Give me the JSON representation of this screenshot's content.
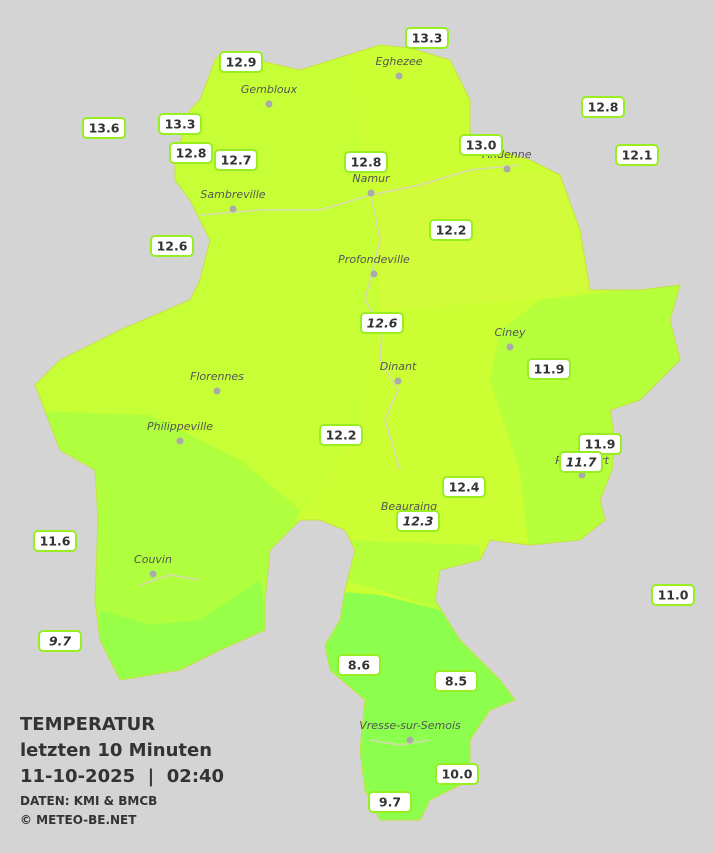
{
  "title": {
    "lines": [
      "TEMPERATUR",
      "letzten 10 Minuten",
      "11-10-2025  |  02:40"
    ],
    "source": "DATEN: KMI & BMCB",
    "copyright": "© METEO-BE.NET"
  },
  "cities": [
    {
      "name": "Eghezee"
    },
    {
      "name": "Gembloux"
    },
    {
      "name": "Andenne"
    },
    {
      "name": "Namur"
    },
    {
      "name": "Sambreville"
    },
    {
      "name": "Profondeville"
    },
    {
      "name": "Ciney"
    },
    {
      "name": "Dinant"
    },
    {
      "name": "Florennes"
    },
    {
      "name": "Philippeville"
    },
    {
      "name": "Rochefort"
    },
    {
      "name": "Beauraing"
    },
    {
      "name": "Couvin"
    },
    {
      "name": "Vresse-sur-Semois"
    }
  ],
  "stations": [
    {
      "value": "13.3"
    },
    {
      "value": "12.9"
    },
    {
      "value": "12.8"
    },
    {
      "value": "13.6"
    },
    {
      "value": "13.3"
    },
    {
      "value": "13.0"
    },
    {
      "value": "12.8"
    },
    {
      "value": "12.7"
    },
    {
      "value": "12.8"
    },
    {
      "value": "12.1"
    },
    {
      "value": "12.2"
    },
    {
      "value": "12.6"
    },
    {
      "value": "12.6",
      "italic": true
    },
    {
      "value": "11.9"
    },
    {
      "value": "12.2"
    },
    {
      "value": "11.9"
    },
    {
      "value": "11.7",
      "italic": true
    },
    {
      "value": "12.4"
    },
    {
      "value": "12.3",
      "italic": true
    },
    {
      "value": "11.6"
    },
    {
      "value": "11.0"
    },
    {
      "value": "9.7",
      "italic": true
    },
    {
      "value": "8.6"
    },
    {
      "value": "8.5"
    },
    {
      "value": "10.0"
    },
    {
      "value": "9.7"
    }
  ]
}
